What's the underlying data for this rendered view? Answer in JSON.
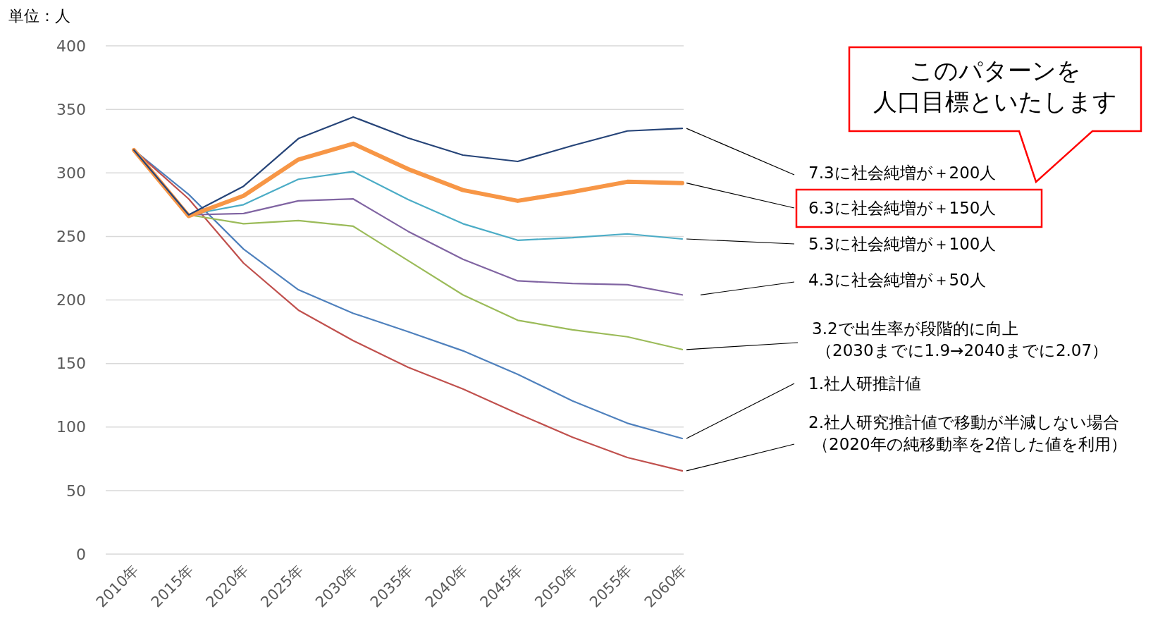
{
  "chart_data": {
    "type": "line",
    "ylabel": "単位：人",
    "categories": [
      "2010年",
      "2015年",
      "2020年",
      "2025年",
      "2030年",
      "2035年",
      "2040年",
      "2045年",
      "2050年",
      "2055年",
      "2060年"
    ],
    "ylim": [
      0,
      400
    ],
    "yticks": [
      0,
      50,
      100,
      150,
      200,
      250,
      300,
      350,
      400
    ],
    "grid": "y",
    "marker": "none",
    "line_style": "solid",
    "series": [
      {
        "name": "1.社人研推計値",
        "color": "#4f81bd",
        "values": [
          318,
          283,
          240,
          208,
          189.5,
          175,
          160,
          141.5,
          120.5,
          103,
          91
        ]
      },
      {
        "name": "2.社人研究推計値で移動が半減しない場合（2020年の純移動率を2倍した値を利用）",
        "color": "#c0504d",
        "values": [
          318,
          279.5,
          229,
          192,
          168,
          147,
          130,
          110.5,
          92,
          76,
          65.5
        ]
      },
      {
        "name": "3.2で出生率が段階的に向上（2030までに1.9→2040までに2.07）",
        "color": "#9bbb59",
        "values": [
          318,
          267,
          260,
          262.5,
          258,
          231,
          204,
          184,
          176.5,
          171,
          161
        ]
      },
      {
        "name": "4.3に社会純増が＋50人",
        "color": "#8064a2",
        "values": [
          318,
          267,
          268,
          278,
          279.5,
          254,
          232,
          215,
          213,
          212,
          204
        ]
      },
      {
        "name": "5.3に社会純増が＋100人",
        "color": "#4bacc6",
        "values": [
          318,
          267,
          275,
          295,
          301,
          279,
          260,
          247,
          249,
          252,
          248
        ]
      },
      {
        "name": "6.3に社会純増が＋150人",
        "color": "#f79646",
        "values": [
          318,
          266,
          282,
          310.5,
          323,
          303,
          286.5,
          278,
          285,
          293,
          292
        ]
      },
      {
        "name": "7.3に社会純増が＋200人",
        "color": "#264478",
        "values": [
          318,
          267,
          289.5,
          327,
          344,
          327.5,
          314,
          309,
          321.5,
          333,
          335
        ]
      }
    ],
    "annotations": [
      "このパターンを人口目標といたします"
    ]
  }
}
